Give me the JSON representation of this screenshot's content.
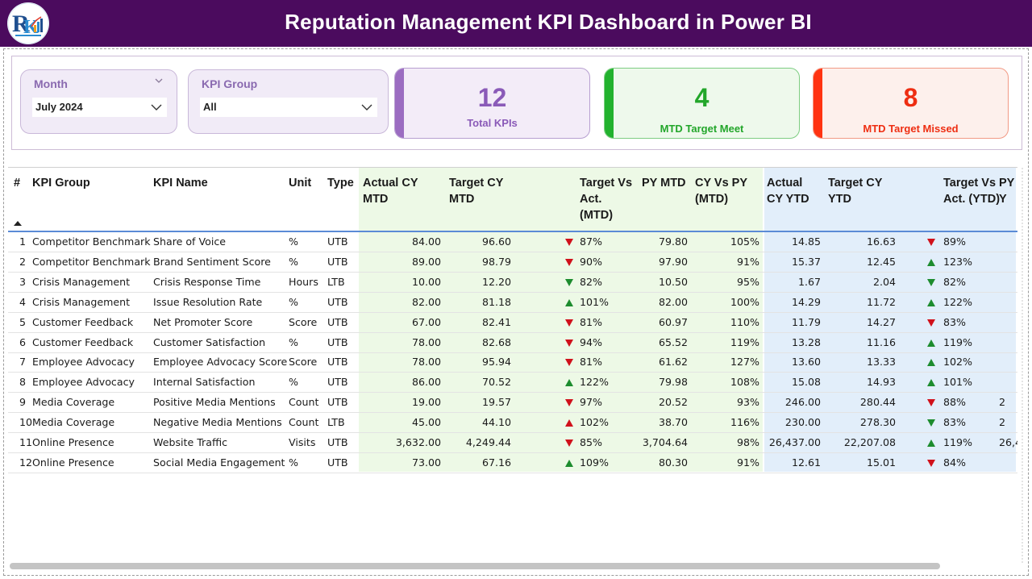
{
  "header": {
    "title": "Reputation Management KPI Dashboard in Power BI"
  },
  "logo": {
    "letters": "RK"
  },
  "filters": {
    "month": {
      "label": "Month",
      "value": "July 2024"
    },
    "kpi_group": {
      "label": "KPI Group",
      "value": "All"
    }
  },
  "cards": [
    {
      "value": "12",
      "label": "Total KPIs",
      "accent": "#9b6cc1",
      "text_color": "#8a5ab8"
    },
    {
      "value": "4",
      "label": "MTD Target Meet",
      "accent": "#22b22e",
      "text_color": "#22a62a"
    },
    {
      "value": "8",
      "label": "MTD Target Missed",
      "accent": "#ff3311",
      "text_color": "#ee2e12"
    }
  ],
  "table": {
    "columns": [
      "#",
      "KPI Group",
      "KPI Name",
      "Unit",
      "Type",
      "Actual CY MTD",
      "Target CY MTD",
      "Target Vs Act. (MTD)",
      "PY MTD",
      "CY Vs PY (MTD)",
      "Actual CY YTD",
      "Target CY YTD",
      "Target Vs Act. (YTD)",
      "PY Y"
    ],
    "rows": [
      {
        "num": "1",
        "group": "Competitor Benchmark",
        "name": "Share of Voice",
        "unit": "%",
        "type": "UTB",
        "actual_mtd": "84.00",
        "target_mtd": "96.60",
        "mtd_icon": "down-red",
        "mtd_pct": "87%",
        "py_mtd": "79.80",
        "cy_py": "105%",
        "actual_ytd": "14.85",
        "target_ytd": "16.63",
        "ytd_icon": "down-red",
        "ytd_pct": "89%",
        "py_ytd": ""
      },
      {
        "num": "2",
        "group": "Competitor Benchmark",
        "name": "Brand Sentiment Score",
        "unit": "%",
        "type": "UTB",
        "actual_mtd": "89.00",
        "target_mtd": "98.79",
        "mtd_icon": "down-red",
        "mtd_pct": "90%",
        "py_mtd": "97.90",
        "cy_py": "91%",
        "actual_ytd": "15.37",
        "target_ytd": "12.45",
        "ytd_icon": "up-green",
        "ytd_pct": "123%",
        "py_ytd": ""
      },
      {
        "num": "3",
        "group": "Crisis Management",
        "name": "Crisis Response Time",
        "unit": "Hours",
        "type": "LTB",
        "actual_mtd": "10.00",
        "target_mtd": "12.20",
        "mtd_icon": "down-green",
        "mtd_pct": "82%",
        "py_mtd": "10.50",
        "cy_py": "95%",
        "actual_ytd": "1.67",
        "target_ytd": "2.04",
        "ytd_icon": "down-green",
        "ytd_pct": "82%",
        "py_ytd": ""
      },
      {
        "num": "4",
        "group": "Crisis Management",
        "name": "Issue Resolution Rate",
        "unit": "%",
        "type": "UTB",
        "actual_mtd": "82.00",
        "target_mtd": "81.18",
        "mtd_icon": "up-green",
        "mtd_pct": "101%",
        "py_mtd": "82.00",
        "cy_py": "100%",
        "actual_ytd": "14.29",
        "target_ytd": "11.72",
        "ytd_icon": "up-green",
        "ytd_pct": "122%",
        "py_ytd": ""
      },
      {
        "num": "5",
        "group": "Customer Feedback",
        "name": "Net Promoter Score",
        "unit": "Score",
        "type": "UTB",
        "actual_mtd": "67.00",
        "target_mtd": "82.41",
        "mtd_icon": "down-red",
        "mtd_pct": "81%",
        "py_mtd": "60.97",
        "cy_py": "110%",
        "actual_ytd": "11.79",
        "target_ytd": "14.27",
        "ytd_icon": "down-red",
        "ytd_pct": "83%",
        "py_ytd": ""
      },
      {
        "num": "6",
        "group": "Customer Feedback",
        "name": "Customer Satisfaction",
        "unit": "%",
        "type": "UTB",
        "actual_mtd": "78.00",
        "target_mtd": "82.68",
        "mtd_icon": "down-red",
        "mtd_pct": "94%",
        "py_mtd": "65.52",
        "cy_py": "119%",
        "actual_ytd": "13.28",
        "target_ytd": "11.16",
        "ytd_icon": "up-green",
        "ytd_pct": "119%",
        "py_ytd": ""
      },
      {
        "num": "7",
        "group": "Employee Advocacy",
        "name": "Employee Advocacy Score",
        "unit": "Score",
        "type": "UTB",
        "actual_mtd": "78.00",
        "target_mtd": "95.94",
        "mtd_icon": "down-red",
        "mtd_pct": "81%",
        "py_mtd": "61.62",
        "cy_py": "127%",
        "actual_ytd": "13.60",
        "target_ytd": "13.33",
        "ytd_icon": "up-green",
        "ytd_pct": "102%",
        "py_ytd": ""
      },
      {
        "num": "8",
        "group": "Employee Advocacy",
        "name": "Internal Satisfaction",
        "unit": "%",
        "type": "UTB",
        "actual_mtd": "86.00",
        "target_mtd": "70.52",
        "mtd_icon": "up-green",
        "mtd_pct": "122%",
        "py_mtd": "79.98",
        "cy_py": "108%",
        "actual_ytd": "15.08",
        "target_ytd": "14.93",
        "ytd_icon": "up-green",
        "ytd_pct": "101%",
        "py_ytd": ""
      },
      {
        "num": "9",
        "group": "Media Coverage",
        "name": "Positive Media Mentions",
        "unit": "Count",
        "type": "UTB",
        "actual_mtd": "19.00",
        "target_mtd": "19.57",
        "mtd_icon": "down-red",
        "mtd_pct": "97%",
        "py_mtd": "20.52",
        "cy_py": "93%",
        "actual_ytd": "246.00",
        "target_ytd": "280.44",
        "ytd_icon": "down-red",
        "ytd_pct": "88%",
        "py_ytd": "2"
      },
      {
        "num": "10",
        "group": "Media Coverage",
        "name": "Negative Media Mentions",
        "unit": "Count",
        "type": "LTB",
        "actual_mtd": "45.00",
        "target_mtd": "44.10",
        "mtd_icon": "up-red",
        "mtd_pct": "102%",
        "py_mtd": "38.70",
        "cy_py": "116%",
        "actual_ytd": "230.00",
        "target_ytd": "278.30",
        "ytd_icon": "down-green",
        "ytd_pct": "83%",
        "py_ytd": "2"
      },
      {
        "num": "11",
        "group": "Online Presence",
        "name": "Website Traffic",
        "unit": "Visits",
        "type": "UTB",
        "actual_mtd": "3,632.00",
        "target_mtd": "4,249.44",
        "mtd_icon": "down-red",
        "mtd_pct": "85%",
        "py_mtd": "3,704.64",
        "cy_py": "98%",
        "actual_ytd": "26,437.00",
        "target_ytd": "22,207.08",
        "ytd_icon": "up-green",
        "ytd_pct": "119%",
        "py_ytd": "26,4"
      },
      {
        "num": "12",
        "group": "Online Presence",
        "name": "Social Media Engagement",
        "unit": "%",
        "type": "UTB",
        "actual_mtd": "73.00",
        "target_mtd": "67.16",
        "mtd_icon": "up-green",
        "mtd_pct": "109%",
        "py_mtd": "80.30",
        "cy_py": "91%",
        "actual_ytd": "12.61",
        "target_ytd": "15.01",
        "ytd_icon": "down-red",
        "ytd_pct": "84%",
        "py_ytd": ""
      }
    ]
  },
  "colors": {
    "header_bg": "#4b0b5e",
    "mtd_band": "#edf9e6",
    "ytd_band": "#e2eefa",
    "up_green": "#1d8c2e",
    "down_red": "#d0111b"
  }
}
